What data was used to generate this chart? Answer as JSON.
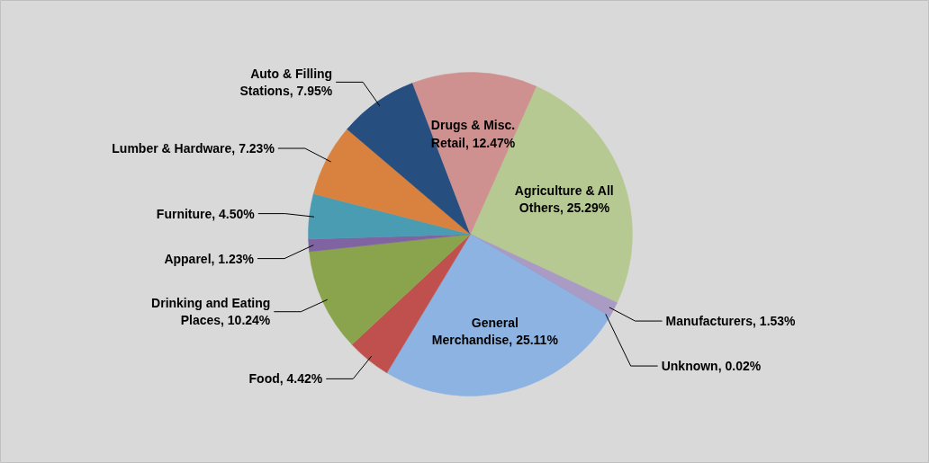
{
  "chart_data": {
    "type": "pie",
    "categories": [
      "Agriculture & All Others",
      "Manufacturers",
      "Unknown",
      "General Merchandise",
      "Food",
      "Drinking and Eating Places",
      "Apparel",
      "Furniture",
      "Lumber & Hardware",
      "Auto & Filling Stations",
      "Drugs & Misc. Retail"
    ],
    "values": [
      25.29,
      1.53,
      0.02,
      25.11,
      4.42,
      10.24,
      1.23,
      4.5,
      7.23,
      7.95,
      12.47
    ],
    "value_labels": [
      "25.29%",
      "1.53%",
      "0.02%",
      "25.11%",
      "4.42%",
      "10.24%",
      "1.23%",
      "4.50%",
      "7.23%",
      "7.95%",
      "12.47%"
    ],
    "colors": [
      "#b7c993",
      "#a99bc4",
      "#7f9fc9",
      "#8db3e2",
      "#c0504d",
      "#8aa44e",
      "#8064a2",
      "#4a9cb3",
      "#d9823f",
      "#264f80",
      "#ce918f"
    ]
  }
}
